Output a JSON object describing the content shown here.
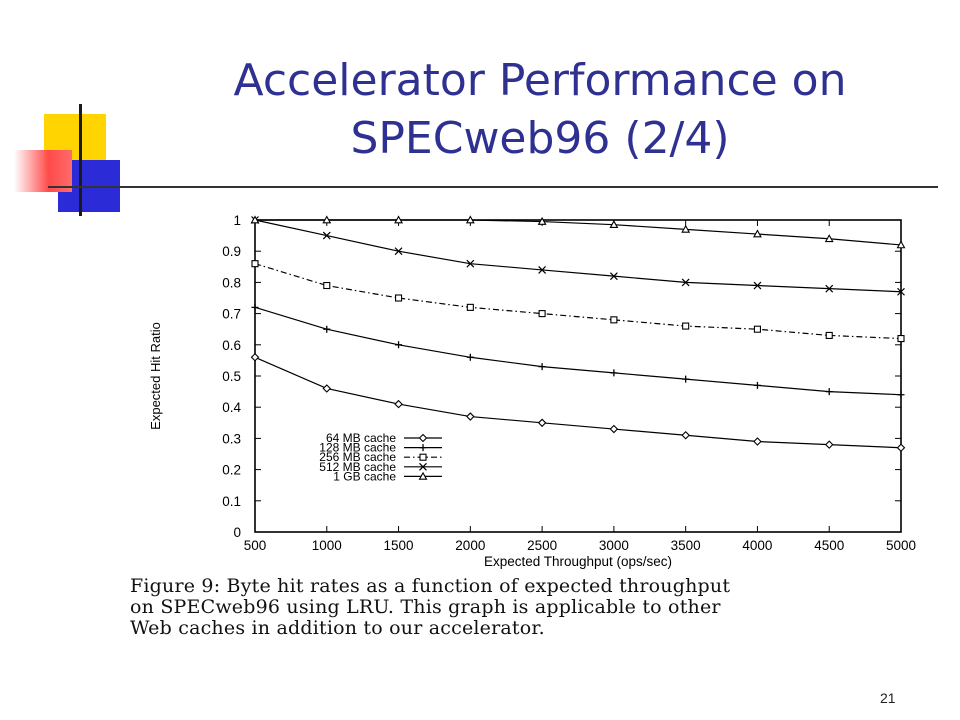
{
  "slide": {
    "title_lines": [
      "Accelerator Performance on",
      "SPECweb96 (2/4)"
    ],
    "caption_lines": [
      "Figure 9:  Byte hit rates as a function of expected throughput",
      "on SPECweb96 using LRU. This graph is applicable to other",
      "Web caches in addition to our accelerator."
    ],
    "slide_number": "21"
  },
  "chart_data": {
    "type": "line",
    "xlabel": "Expected Throughput (ops/sec)",
    "ylabel": "Expected Hit Ratio",
    "xlim": [
      500,
      5000
    ],
    "ylim": [
      0,
      1
    ],
    "x_ticks": [
      500,
      1000,
      1500,
      2000,
      2500,
      3000,
      3500,
      4000,
      4500,
      5000
    ],
    "y_ticks": [
      "0",
      "0.1",
      "0.2",
      "0.3",
      "0.4",
      "0.5",
      "0.6",
      "0.7",
      "0.8",
      "0.9",
      "1"
    ],
    "x": [
      500,
      1000,
      1500,
      2000,
      2500,
      3000,
      3500,
      4000,
      4500,
      5000
    ],
    "legend_position": "bottom-left",
    "series": [
      {
        "name": "64 MB cache",
        "marker": "diamond",
        "dash": "solid",
        "values": [
          0.56,
          0.46,
          0.41,
          0.37,
          0.35,
          0.33,
          0.31,
          0.29,
          0.28,
          0.27
        ]
      },
      {
        "name": "128 MB cache",
        "marker": "plus",
        "dash": "solid",
        "values": [
          0.72,
          0.65,
          0.6,
          0.56,
          0.53,
          0.51,
          0.49,
          0.47,
          0.45,
          0.44
        ]
      },
      {
        "name": "256 MB cache",
        "marker": "square",
        "dash": "dashdot",
        "values": [
          0.86,
          0.79,
          0.75,
          0.72,
          0.7,
          0.68,
          0.66,
          0.65,
          0.63,
          0.62
        ]
      },
      {
        "name": "512 MB cache",
        "marker": "x",
        "dash": "solid",
        "values": [
          1.0,
          0.95,
          0.9,
          0.86,
          0.84,
          0.82,
          0.8,
          0.79,
          0.78,
          0.77
        ]
      },
      {
        "name": "1 GB cache",
        "marker": "triangle",
        "dash": "solid",
        "values": [
          1.0,
          1.0,
          1.0,
          1.0,
          0.995,
          0.985,
          0.97,
          0.955,
          0.94,
          0.92
        ]
      }
    ]
  }
}
